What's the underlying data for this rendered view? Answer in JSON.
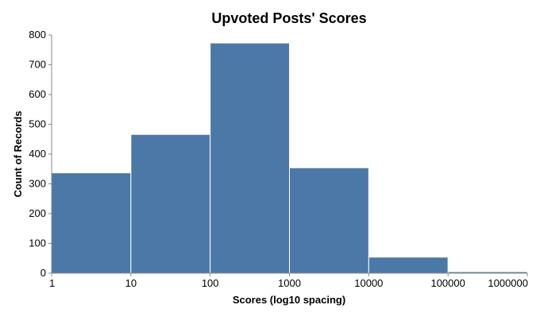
{
  "chart_data": {
    "type": "bar",
    "title": "Upvoted Posts' Scores",
    "xlabel": "Scores (log10 spacing)",
    "ylabel": "Count of Records",
    "x_scale": "log10",
    "x_ticks": [
      "1",
      "10",
      "100",
      "1000",
      "10000",
      "100000",
      "1000000"
    ],
    "y_ticks": [
      "0",
      "100",
      "200",
      "300",
      "400",
      "500",
      "600",
      "700",
      "800"
    ],
    "ylim": [
      0,
      800
    ],
    "grid": false,
    "legend": "none",
    "bin_edges": [
      1,
      10,
      100,
      1000,
      10000,
      100000,
      1000000
    ],
    "values": [
      337,
      466,
      773,
      354,
      54,
      5
    ],
    "bar_color": "#4c78a8"
  }
}
